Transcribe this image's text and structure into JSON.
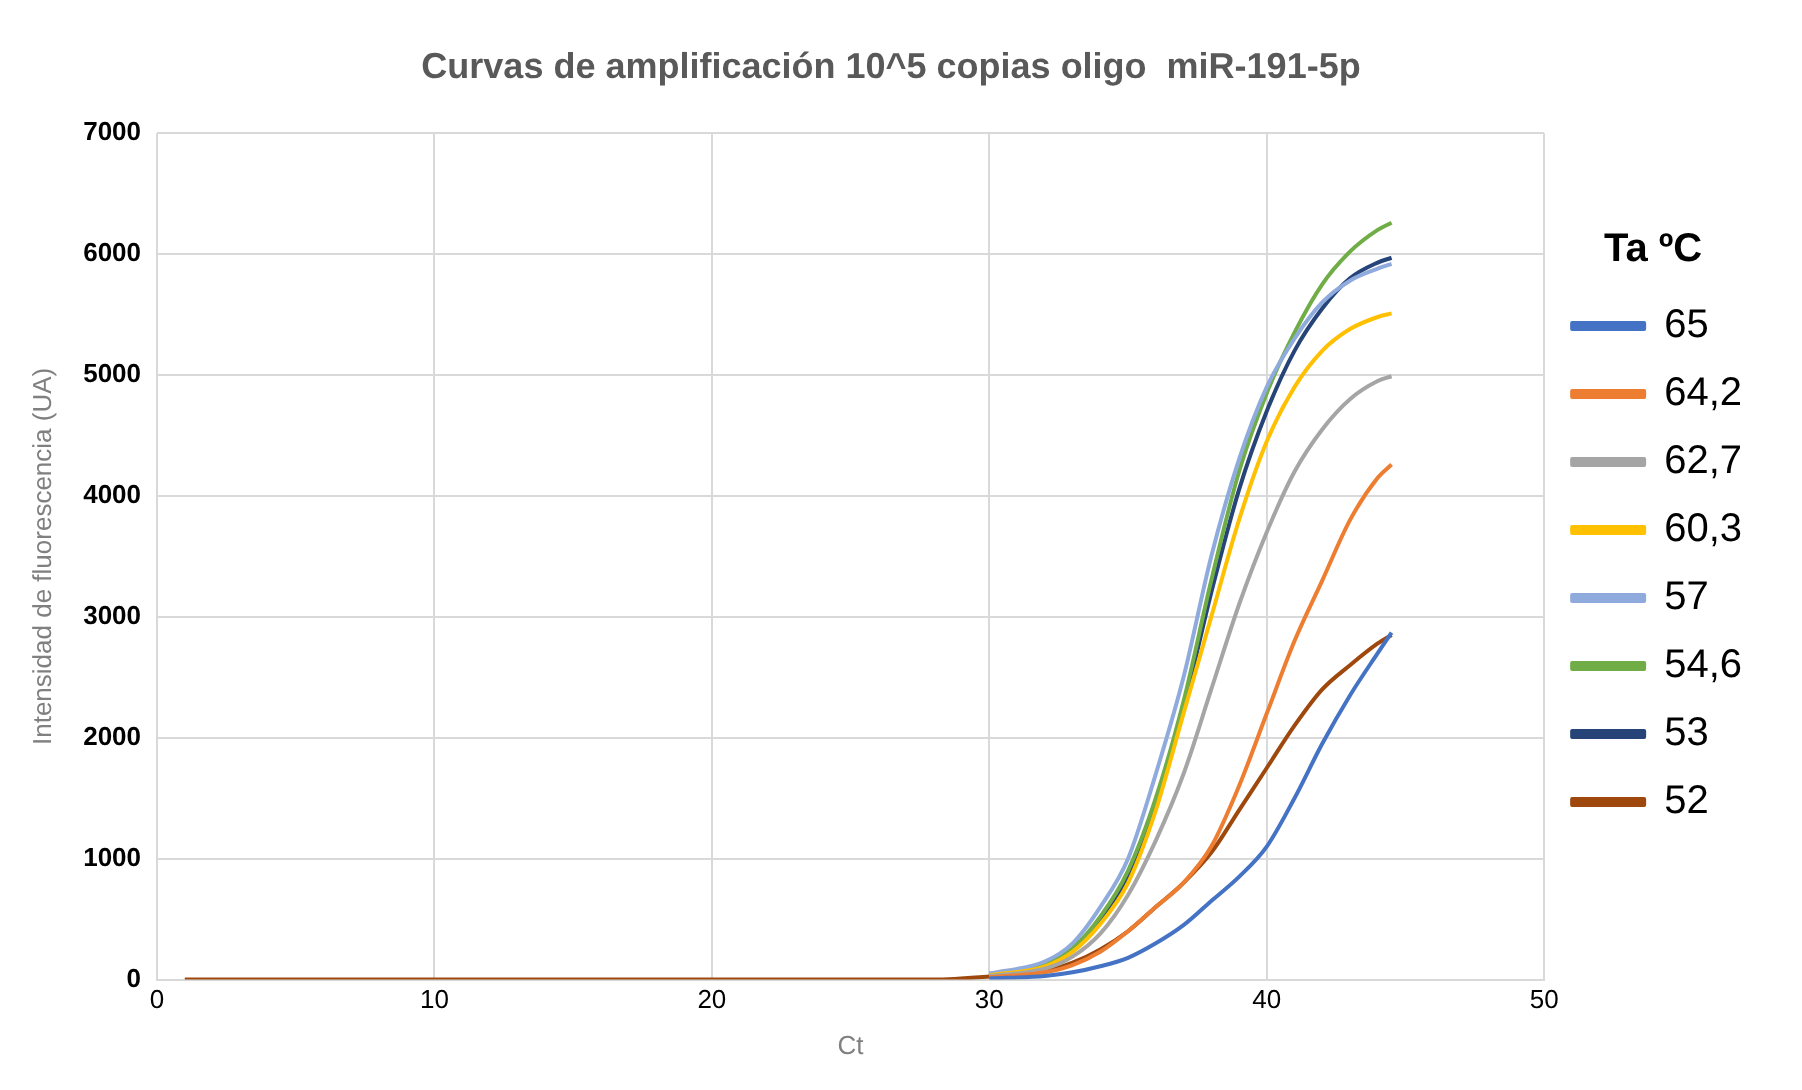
{
  "chart_data": {
    "type": "line",
    "title": "Curvas de amplificación 10^5 copias oligo  miR-191-5p",
    "xlabel": "Ct",
    "ylabel": "Intensidad de fluorescencia (UA)",
    "legend_title": "Ta ºC",
    "x": [
      1,
      10,
      20,
      25,
      28,
      30,
      32,
      33,
      34,
      35,
      36,
      37,
      38,
      39,
      40,
      41,
      42,
      43,
      44,
      44.5
    ],
    "xlim": [
      0,
      50
    ],
    "xticks": [
      0,
      10,
      20,
      30,
      40,
      50
    ],
    "ylim": [
      0,
      7000
    ],
    "yticks": [
      0,
      1000,
      2000,
      3000,
      4000,
      5000,
      6000,
      7000
    ],
    "grid": true,
    "legend": "right",
    "marker": "none",
    "line_style": "solid",
    "series": [
      {
        "name": "65",
        "color": "#4472c4",
        "values": [
          null,
          null,
          null,
          null,
          null,
          10,
          30,
          60,
          110,
          180,
          300,
          450,
          650,
          850,
          1100,
          1500,
          1950,
          2350,
          2700,
          2870
        ]
      },
      {
        "name": "64,2",
        "color": "#ed7d31",
        "values": [
          null,
          null,
          null,
          null,
          null,
          20,
          60,
          120,
          230,
          400,
          600,
          800,
          1100,
          1600,
          2200,
          2800,
          3300,
          3800,
          4150,
          4260
        ]
      },
      {
        "name": "62,7",
        "color": "#a5a5a5",
        "values": [
          null,
          null,
          null,
          null,
          null,
          30,
          90,
          190,
          380,
          700,
          1150,
          1700,
          2400,
          3100,
          3700,
          4200,
          4550,
          4800,
          4950,
          4990
        ]
      },
      {
        "name": "60,3",
        "color": "#ffc000",
        "values": [
          null,
          null,
          null,
          null,
          null,
          35,
          110,
          230,
          460,
          800,
          1400,
          2200,
          3000,
          3800,
          4450,
          4900,
          5200,
          5380,
          5480,
          5510
        ]
      },
      {
        "name": "57",
        "color": "#8faadc",
        "values": [
          null,
          null,
          null,
          null,
          null,
          50,
          150,
          300,
          600,
          1000,
          1700,
          2500,
          3500,
          4300,
          4900,
          5300,
          5600,
          5780,
          5880,
          5920
        ]
      },
      {
        "name": "54,6",
        "color": "#70ad47",
        "values": [
          null,
          null,
          null,
          null,
          null,
          45,
          130,
          260,
          520,
          900,
          1500,
          2300,
          3300,
          4200,
          4850,
          5350,
          5750,
          6020,
          6200,
          6260
        ]
      },
      {
        "name": "53",
        "color": "#264478",
        "values": [
          null,
          null,
          null,
          null,
          null,
          40,
          120,
          250,
          500,
          850,
          1450,
          2250,
          3200,
          4050,
          4700,
          5200,
          5550,
          5800,
          5930,
          5970
        ]
      },
      {
        "name": "52",
        "color": "#9e480e",
        "values": [
          0,
          0,
          0,
          0,
          0,
          25,
          70,
          140,
          250,
          400,
          600,
          800,
          1050,
          1400,
          1750,
          2100,
          2400,
          2600,
          2780,
          2850
        ]
      }
    ]
  }
}
